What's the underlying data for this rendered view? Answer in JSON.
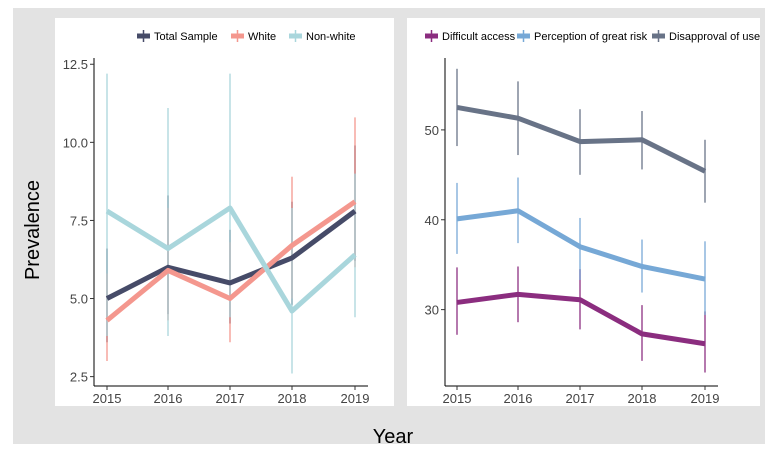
{
  "figure": {
    "ylabel": "Prevalence",
    "xlabel": "Year"
  },
  "chart_data": [
    {
      "type": "line",
      "x": [
        2015,
        2016,
        2017,
        2018,
        2019
      ],
      "ylim": [
        2.2,
        12.7
      ],
      "yticks": [
        2.5,
        5.0,
        7.5,
        10.0,
        12.5
      ],
      "ytick_labels": [
        "2.5",
        "5.0",
        "7.5",
        "10.0",
        "12.5"
      ],
      "grid": false,
      "legend_position": "top",
      "series": [
        {
          "name": "Total Sample",
          "color": "#464b68",
          "values": [
            5.0,
            6.0,
            5.5,
            6.3,
            7.8
          ],
          "err_low": [
            3.6,
            4.5,
            4.2,
            4.8,
            6.2
          ],
          "err_high": [
            6.6,
            8.3,
            7.2,
            8.1,
            9.9
          ]
        },
        {
          "name": "White",
          "color": "#f4978e",
          "values": [
            4.3,
            5.9,
            5.0,
            6.7,
            8.1
          ],
          "err_low": [
            3.0,
            4.3,
            3.6,
            5.0,
            6.0
          ],
          "err_high": [
            5.8,
            7.9,
            6.8,
            8.9,
            10.8
          ]
        },
        {
          "name": "Non-white",
          "color": "#a9d6dc",
          "values": [
            7.8,
            6.6,
            7.9,
            4.6,
            6.4
          ],
          "err_low": [
            3.8,
            3.8,
            4.4,
            2.6,
            4.4
          ],
          "err_high": [
            12.2,
            11.1,
            12.2,
            7.9,
            9.0
          ]
        }
      ]
    },
    {
      "type": "line",
      "x": [
        2015,
        2016,
        2017,
        2018,
        2019
      ],
      "ylim": [
        21.5,
        58.0
      ],
      "yticks": [
        30,
        40,
        50
      ],
      "ytick_labels": [
        "30",
        "40",
        "50"
      ],
      "grid": false,
      "legend_position": "top",
      "series": [
        {
          "name": "Difficult access",
          "color": "#8b2d7f",
          "values": [
            30.8,
            31.7,
            31.1,
            27.3,
            26.2
          ],
          "err_low": [
            27.2,
            28.6,
            27.8,
            24.3,
            23.0
          ],
          "err_high": [
            34.7,
            34.8,
            34.5,
            30.5,
            29.8
          ]
        },
        {
          "name": "Perception of great risk",
          "color": "#76a8d6",
          "values": [
            40.1,
            41.0,
            37.0,
            34.8,
            33.4
          ],
          "err_low": [
            36.2,
            37.4,
            33.3,
            31.9,
            29.4
          ],
          "err_high": [
            44.1,
            44.7,
            40.2,
            37.8,
            37.6
          ]
        },
        {
          "name": "Disapproval of use",
          "color": "#687387",
          "values": [
            52.5,
            51.3,
            48.7,
            48.9,
            45.4
          ],
          "err_low": [
            48.2,
            47.2,
            45.0,
            45.6,
            41.9
          ],
          "err_high": [
            56.8,
            55.4,
            52.3,
            52.1,
            48.9
          ]
        }
      ]
    }
  ]
}
